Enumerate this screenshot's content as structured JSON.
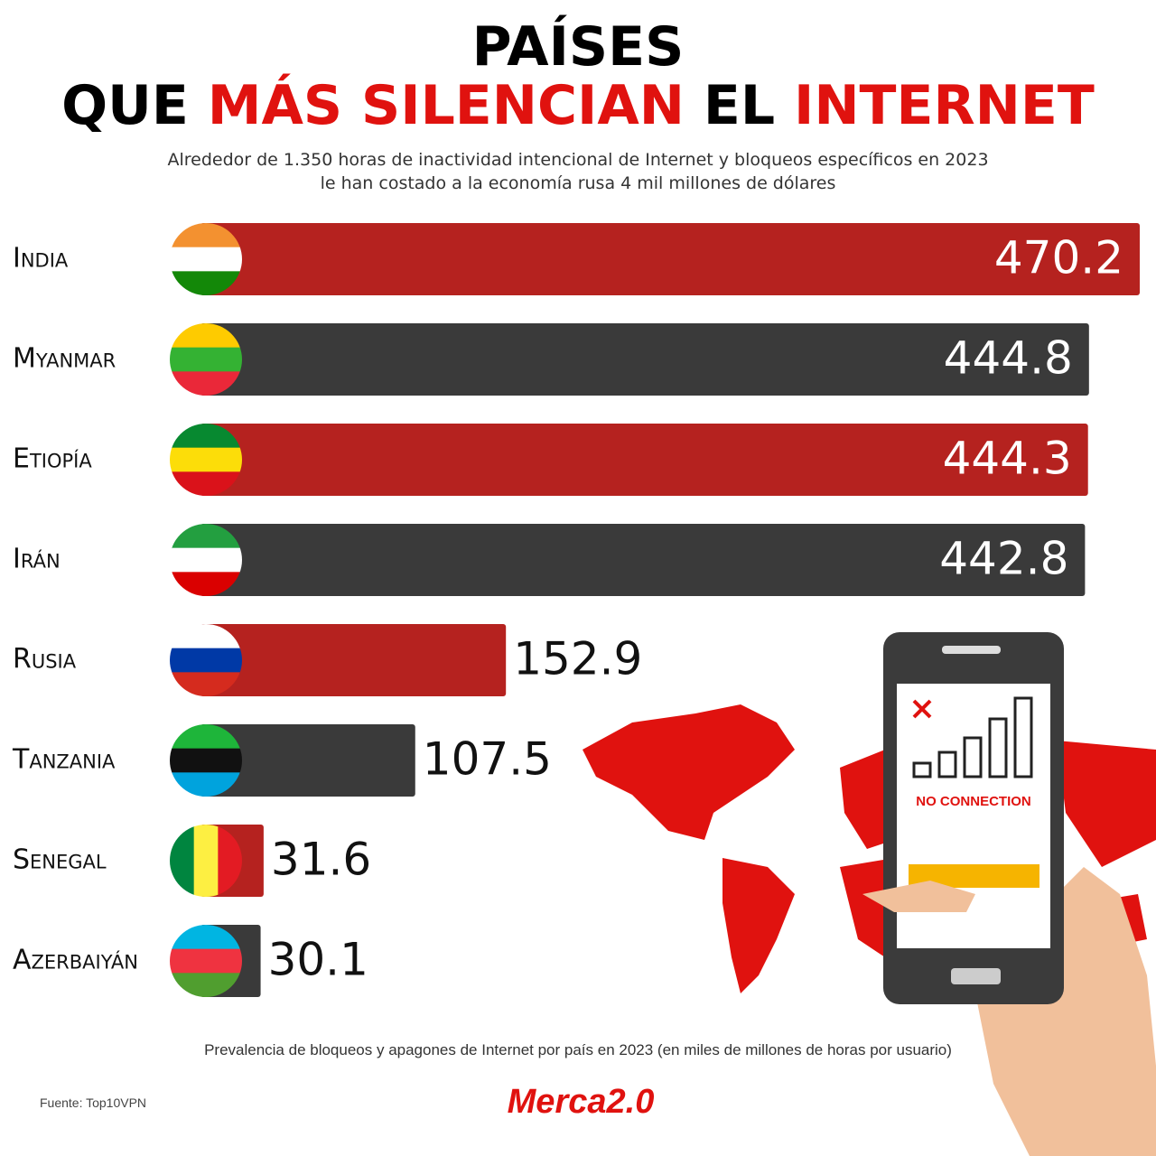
{
  "chart_data": {
    "type": "bar",
    "title_parts": [
      "PAÍSES",
      "QUE",
      "MÁS SILENCIAN",
      "EL",
      "INTERNET"
    ],
    "subtitle": [
      "Alrededor de 1.350 horas de inactividad intencional de Internet y bloqueos específicos en 2023",
      "le han costado a la economía rusa 4 mil millones de dólares"
    ],
    "categories": [
      "India",
      "Myanmar",
      "Etiopía",
      "Irán",
      "Rusia",
      "Tanzania",
      "Senegal",
      "Azerbaiyán"
    ],
    "values": [
      470.2,
      444.8,
      444.3,
      442.8,
      152.9,
      107.5,
      31.6,
      30.1
    ],
    "colors": [
      "#b5221f",
      "#3a3a3a",
      "#b5221f",
      "#3a3a3a",
      "#b5221f",
      "#3a3a3a",
      "#b5221f",
      "#3a3a3a"
    ],
    "phone_text": "NO CONNECTION",
    "footnote": "Prevalencia de bloqueos y apagones de Internet por país en 2023 (en miles de millones de horas por usuario)",
    "source": "Fuente: Top10VPN",
    "logo": "Merca2.0"
  }
}
